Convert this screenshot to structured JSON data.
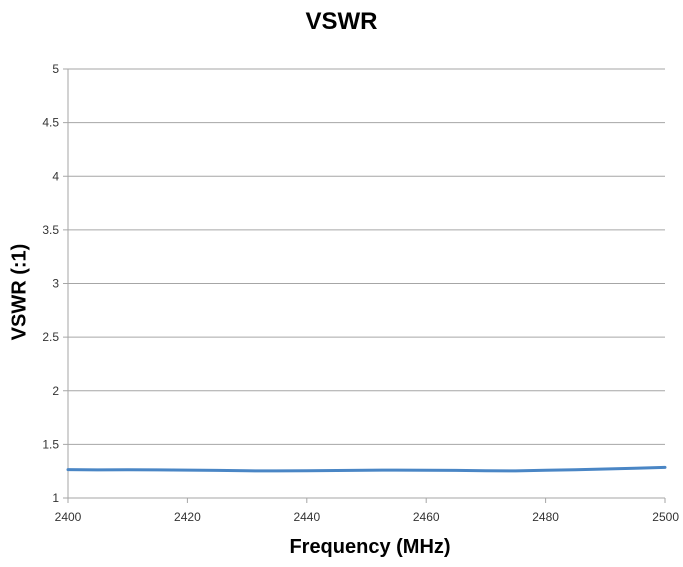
{
  "chart_data": {
    "type": "line",
    "title": "VSWR",
    "xlabel": "Frequency (MHz)",
    "ylabel": "VSWR (:1)",
    "xlim": [
      2400,
      2500
    ],
    "ylim": [
      1,
      5
    ],
    "x_ticks": [
      "2400",
      "2420",
      "2440",
      "2460",
      "2480",
      "2500"
    ],
    "y_ticks": [
      "1",
      "1.5",
      "2",
      "2.5",
      "3",
      "3.5",
      "4",
      "4.5",
      "5"
    ],
    "grid": "horizontal",
    "legend": "none",
    "series": [
      {
        "color": "#4a86c5",
        "x": [
          2400,
          2405,
          2410,
          2415,
          2420,
          2425,
          2430,
          2435,
          2440,
          2445,
          2450,
          2455,
          2460,
          2465,
          2470,
          2475,
          2480,
          2485,
          2490,
          2495,
          2500
        ],
        "y": [
          1.265,
          1.262,
          1.263,
          1.262,
          1.26,
          1.257,
          1.254,
          1.253,
          1.254,
          1.256,
          1.259,
          1.26,
          1.259,
          1.257,
          1.254,
          1.253,
          1.258,
          1.264,
          1.27,
          1.278,
          1.285
        ]
      }
    ]
  }
}
